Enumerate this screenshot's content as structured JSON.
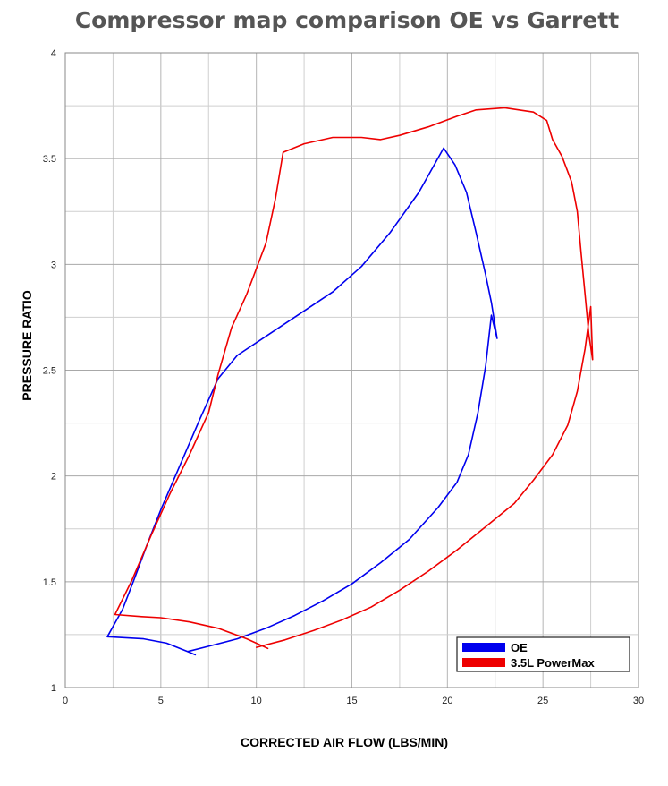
{
  "chart_data": {
    "type": "line",
    "title": "Compressor map comparison OE vs Garrett",
    "xlabel": "CORRECTED AIR FLOW (LBS/MIN)",
    "ylabel": "PRESSURE RATIO",
    "xlim": [
      0,
      30
    ],
    "ylim": [
      1,
      4
    ],
    "xticks": [
      0,
      5,
      10,
      15,
      20,
      25,
      30
    ],
    "xtick_labels": [
      "0",
      "5",
      "10",
      "15",
      "20",
      "25",
      "30"
    ],
    "yticks": [
      1,
      1.5,
      2,
      2.5,
      3,
      3.5,
      4
    ],
    "ytick_labels": [
      "1",
      "1.5",
      "2",
      "2.5",
      "3",
      "3.5",
      "4"
    ],
    "grid": true,
    "legend_position": "bottom-right",
    "series": [
      {
        "name": "OE",
        "color": "#0000ee",
        "points": [
          [
            6.8,
            1.155
          ],
          [
            6.4,
            1.17
          ],
          [
            5.3,
            1.21
          ],
          [
            4.1,
            1.23
          ],
          [
            2.2,
            1.24
          ],
          [
            3.0,
            1.37
          ],
          [
            3.6,
            1.51
          ],
          [
            4.3,
            1.68
          ],
          [
            5.0,
            1.84
          ],
          [
            6.0,
            2.05
          ],
          [
            7.0,
            2.26
          ],
          [
            8.0,
            2.46
          ],
          [
            9.0,
            2.57
          ],
          [
            10.5,
            2.66
          ],
          [
            12.0,
            2.75
          ],
          [
            14.0,
            2.87
          ],
          [
            15.5,
            2.99
          ],
          [
            17.0,
            3.15
          ],
          [
            18.5,
            3.34
          ],
          [
            19.8,
            3.55
          ],
          [
            20.4,
            3.47
          ],
          [
            21.0,
            3.34
          ],
          [
            21.5,
            3.15
          ],
          [
            22.0,
            2.95
          ],
          [
            22.3,
            2.82
          ],
          [
            22.6,
            2.65
          ],
          [
            22.3,
            2.76
          ],
          [
            22.0,
            2.52
          ],
          [
            21.6,
            2.3
          ],
          [
            21.1,
            2.1
          ],
          [
            20.5,
            1.97
          ],
          [
            19.5,
            1.85
          ],
          [
            18.0,
            1.7
          ],
          [
            16.5,
            1.59
          ],
          [
            15.0,
            1.49
          ],
          [
            13.5,
            1.41
          ],
          [
            12.0,
            1.34
          ],
          [
            10.5,
            1.28
          ],
          [
            9.0,
            1.23
          ],
          [
            7.5,
            1.195
          ],
          [
            6.4,
            1.17
          ]
        ]
      },
      {
        "name": "3.5L PowerMax",
        "color": "#ee0000",
        "points": [
          [
            10.6,
            1.185
          ],
          [
            9.5,
            1.23
          ],
          [
            8.0,
            1.28
          ],
          [
            6.5,
            1.31
          ],
          [
            5.0,
            1.33
          ],
          [
            4.0,
            1.335
          ],
          [
            2.6,
            1.345
          ],
          [
            3.5,
            1.51
          ],
          [
            4.5,
            1.72
          ],
          [
            5.5,
            1.92
          ],
          [
            6.5,
            2.1
          ],
          [
            7.5,
            2.3
          ],
          [
            8.0,
            2.48
          ],
          [
            8.7,
            2.7
          ],
          [
            9.5,
            2.86
          ],
          [
            10.5,
            3.1
          ],
          [
            11.0,
            3.31
          ],
          [
            11.4,
            3.53
          ],
          [
            12.5,
            3.57
          ],
          [
            14.0,
            3.6
          ],
          [
            15.5,
            3.6
          ],
          [
            16.5,
            3.59
          ],
          [
            17.5,
            3.61
          ],
          [
            19.0,
            3.65
          ],
          [
            20.5,
            3.7
          ],
          [
            21.5,
            3.73
          ],
          [
            23.0,
            3.74
          ],
          [
            24.5,
            3.72
          ],
          [
            25.2,
            3.68
          ],
          [
            25.5,
            3.59
          ],
          [
            26.0,
            3.51
          ],
          [
            26.5,
            3.39
          ],
          [
            26.8,
            3.25
          ],
          [
            27.0,
            3.05
          ],
          [
            27.2,
            2.86
          ],
          [
            27.4,
            2.67
          ],
          [
            27.6,
            2.55
          ],
          [
            27.5,
            2.8
          ],
          [
            27.2,
            2.6
          ],
          [
            26.8,
            2.4
          ],
          [
            26.3,
            2.24
          ],
          [
            25.5,
            2.1
          ],
          [
            24.5,
            1.98
          ],
          [
            23.5,
            1.87
          ],
          [
            22.0,
            1.76
          ],
          [
            20.5,
            1.65
          ],
          [
            19.0,
            1.55
          ],
          [
            17.5,
            1.46
          ],
          [
            16.0,
            1.38
          ],
          [
            14.5,
            1.32
          ],
          [
            13.0,
            1.27
          ],
          [
            11.5,
            1.225
          ],
          [
            10.0,
            1.19
          ]
        ]
      }
    ]
  }
}
